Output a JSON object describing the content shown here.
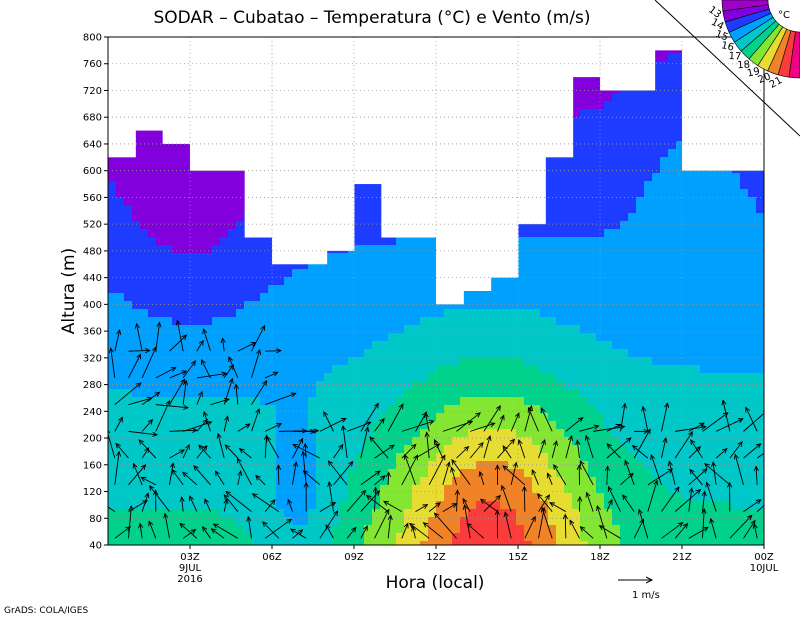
{
  "chart_data": {
    "type": "contour",
    "title": "SODAR – Cubatao – Temperatura (°C) e Vento (m/s)",
    "xlabel": "Hora (local)",
    "ylabel": "Altura (m)",
    "ylim": [
      40,
      800
    ],
    "xlim": [
      0,
      23
    ],
    "yticks": [
      40,
      80,
      120,
      160,
      200,
      240,
      280,
      320,
      360,
      400,
      440,
      480,
      520,
      560,
      600,
      640,
      680,
      720,
      760,
      800
    ],
    "xticks": [
      {
        "x": 3,
        "label": "03Z",
        "sub1": "9JUL",
        "sub2": "2016"
      },
      {
        "x": 6,
        "label": "06Z",
        "sub1": "",
        "sub2": ""
      },
      {
        "x": 9,
        "label": "09Z",
        "sub1": "",
        "sub2": ""
      },
      {
        "x": 12,
        "label": "12Z",
        "sub1": "",
        "sub2": ""
      },
      {
        "x": 15,
        "label": "15Z",
        "sub1": "",
        "sub2": ""
      },
      {
        "x": 18,
        "label": "18Z",
        "sub1": "",
        "sub2": ""
      },
      {
        "x": 21,
        "label": "21Z",
        "sub1": "",
        "sub2": ""
      },
      {
        "x": 24,
        "label": "00Z",
        "sub1": "10JUL",
        "sub2": ""
      }
    ],
    "grid": true,
    "colorbar": {
      "unit": "°C",
      "levels": [
        13,
        14,
        15,
        16,
        17,
        18,
        19,
        20,
        21
      ],
      "colors": [
        "#a000c8",
        "#8200dc",
        "#1e3cff",
        "#00a0ff",
        "#00c8c8",
        "#00d28c",
        "#82e632",
        "#e6dc32",
        "#f08228",
        "#fa3c3c",
        "#f00082"
      ],
      "placement": "top-right"
    },
    "top_of_data": [
      620,
      660,
      640,
      600,
      600,
      500,
      460,
      460,
      480,
      580,
      500,
      500,
      400,
      420,
      440,
      520,
      620,
      740,
      720,
      720,
      780,
      600,
      600,
      600
    ],
    "wind_scale_label": "1  m/s",
    "credit": "GrADS: COLA/IGES"
  }
}
